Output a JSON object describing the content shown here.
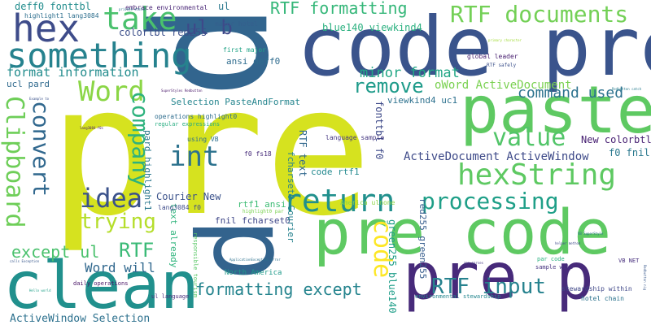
{
  "words": [
    {
      "text": "pre",
      "color": "#d6e21f"
    },
    {
      "text": "p",
      "color": "#32658e"
    },
    {
      "text": "code pre",
      "color": "#3a548c"
    },
    {
      "text": "pre code",
      "color": "#5ec962"
    },
    {
      "text": "clean",
      "color": "#21908d"
    },
    {
      "text": "pre p",
      "color": "#472a7a"
    },
    {
      "text": "p",
      "color": "#33638d"
    },
    {
      "text": "paste",
      "color": "#5ec962"
    },
    {
      "text": "hex",
      "color": "#3e4c8a"
    },
    {
      "text": "something",
      "color": "#26828e"
    },
    {
      "text": "take",
      "color": "#4ac16d"
    },
    {
      "text": "RTF documents",
      "color": "#73d056"
    },
    {
      "text": "Word",
      "color": "#8bd646"
    },
    {
      "text": "return",
      "color": "#21908d"
    },
    {
      "text": "hexString",
      "color": "#5ec962"
    },
    {
      "text": "processing",
      "color": "#1f9f88"
    },
    {
      "text": "Clipboard",
      "color": "#6ece58"
    },
    {
      "text": "convert",
      "color": "#31688e"
    },
    {
      "text": "company",
      "color": "#2db27d"
    },
    {
      "text": "idea",
      "color": "#3b528b"
    },
    {
      "text": "trying",
      "color": "#b5de2b"
    },
    {
      "text": "int",
      "color": "#2c728e"
    },
    {
      "text": "value",
      "color": "#52c569"
    },
    {
      "text": "code",
      "color": "#fde725"
    },
    {
      "text": "remove",
      "color": "#1e9b8a"
    },
    {
      "text": "RTF input",
      "color": "#26828e"
    },
    {
      "text": "formatting except",
      "color": "#25848e"
    },
    {
      "text": "RTF",
      "color": "#3aba76"
    },
    {
      "text": "except ul",
      "color": "#4ac16d"
    },
    {
      "text": "RTF formatting",
      "color": "#35b779"
    },
    {
      "text": "ul b",
      "color": "#3e4989"
    },
    {
      "text": "command used",
      "color": "#2c728e"
    },
    {
      "text": "minor format",
      "color": "#22a785"
    },
    {
      "text": "format information",
      "color": "#228c8d"
    },
    {
      "text": "Word will",
      "color": "#31688e"
    },
    {
      "text": "ActiveDocument ActiveWindow",
      "color": "#3e4a89"
    },
    {
      "text": "oWord ActiveDocument",
      "color": "#7ad151"
    },
    {
      "text": "ActiveWindow Selection",
      "color": "#2d718e"
    },
    {
      "text": "New colorbtl",
      "color": "#482173"
    },
    {
      "text": "f0 fnil",
      "color": "#2a788e"
    },
    {
      "text": "blue140 viewkind4",
      "color": "#2ab07f"
    },
    {
      "text": "colortbl red255",
      "color": "#3c4f8a"
    },
    {
      "text": "deff0 fonttbl",
      "color": "#228d8d"
    },
    {
      "text": "ul",
      "color": "#2a788e"
    },
    {
      "text": "viewkind4 uc1",
      "color": "#2d718e"
    },
    {
      "text": "Selection PasteAndFormat",
      "color": "#25858e"
    },
    {
      "text": "fonttbl f0",
      "color": "#3e4a89"
    },
    {
      "text": "RTF text",
      "color": "#31688e"
    },
    {
      "text": "Courier New",
      "color": "#3b528b"
    },
    {
      "text": "code rtf1",
      "color": "#23898e"
    },
    {
      "text": "fnil fcharset0",
      "color": "#3f4788"
    },
    {
      "text": "fcharset0 Courier",
      "color": "#26828e"
    },
    {
      "text": "red255 green255",
      "color": "#365d8d"
    },
    {
      "text": "green255 blue140",
      "color": "#1f9e89"
    },
    {
      "text": "pard highlight1",
      "color": "#2a778e"
    },
    {
      "text": "text already",
      "color": "#2fb47c"
    },
    {
      "text": "rtf1 ansi",
      "color": "#3dbc74"
    },
    {
      "text": "ansi deff0",
      "color": "#2f6c8e"
    },
    {
      "text": "ucl pard",
      "color": "#306a8e"
    },
    {
      "text": "North America",
      "color": "#1f9a8a"
    },
    {
      "text": "global leader",
      "color": "#481f70"
    },
    {
      "text": "highlight1 lang3084",
      "color": "#2e6f8e"
    },
    {
      "text": "embrace environmental",
      "color": "#482576"
    },
    {
      "text": "major hotel",
      "color": "#355f8d"
    },
    {
      "text": "first major",
      "color": "#20a386"
    },
    {
      "text": "operations highlight0",
      "color": "#2e6d8e"
    },
    {
      "text": "lang3084 f0",
      "color": "#3e4c8a"
    },
    {
      "text": "f0 fs18",
      "color": "#472c7a"
    },
    {
      "text": "language sample",
      "color": "#453781"
    },
    {
      "text": "America ulnone",
      "color": "#8fd744"
    },
    {
      "text": "using VB",
      "color": "#2d708e"
    },
    {
      "text": "regular expressions",
      "color": "#27ad81"
    },
    {
      "text": "daily operations",
      "color": "#471164"
    },
    {
      "text": "responsible tourism",
      "color": "#58c765"
    },
    {
      "text": "environmental stewardship",
      "color": "#24868e"
    },
    {
      "text": "stewardship within",
      "color": "#3f4788"
    },
    {
      "text": "hotel chain",
      "color": "#2c738e"
    },
    {
      "text": "sample will",
      "color": "#46337f"
    },
    {
      "text": "par code",
      "color": "#2ab07f"
    },
    {
      "text": "VB NET",
      "color": "#472f7d"
    },
    {
      "text": "RTF safely",
      "color": "#3c508b"
    },
    {
      "text": "highlight0 par",
      "color": "#7ad151"
    },
    {
      "text": "SuperStyles Redbutton",
      "color": "#481668"
    },
    {
      "text": "ApplicationException Error",
      "color": "#2d718e"
    },
    {
      "text": "ul language",
      "color": "#472d7b"
    },
    {
      "text": "calls Exception",
      "color": "#38588c"
    },
    {
      "text": "Hello world",
      "color": "#1fa088"
    },
    {
      "text": "helper method",
      "color": "#3e4989"
    },
    {
      "text": "app parses",
      "color": "#453882"
    },
    {
      "text": "Redbutton catch",
      "color": "#287c8e"
    },
    {
      "text": "private static",
      "color": "#2a788e"
    },
    {
      "text": "primary character",
      "color": "#a2da37"
    },
    {
      "text": "Example to",
      "color": "#3b528b"
    },
    {
      "text": "lang3084 f0s",
      "color": "#481f70"
    },
    {
      "text": "VB SuperStyle",
      "color": "#2d718e"
    },
    {
      "text": "Redbutton nig",
      "color": "#38588c"
    }
  ]
}
